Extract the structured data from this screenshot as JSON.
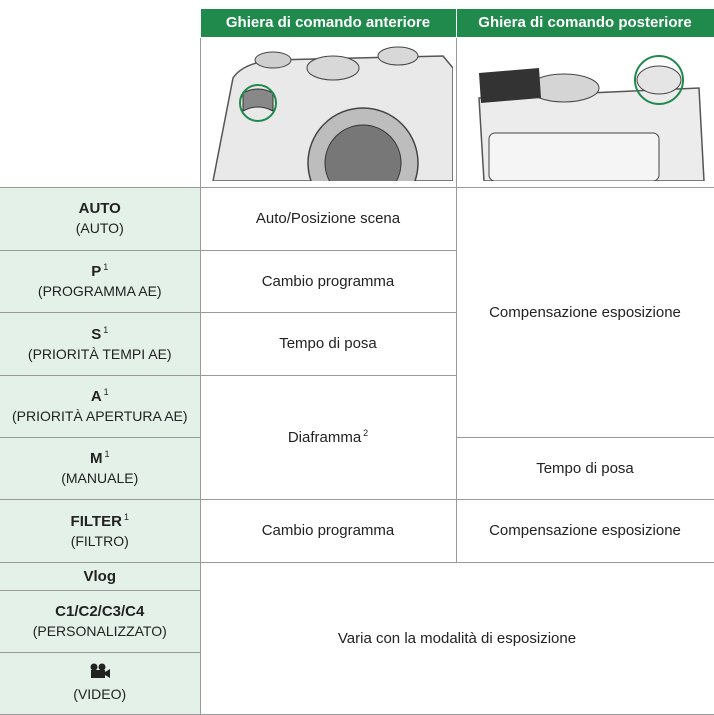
{
  "header": {
    "columns": [
      "Ghiera di comando anteriore",
      "Ghiera di comando posteriore"
    ]
  },
  "modes": [
    {
      "name": "AUTO",
      "sub": "(AUTO)"
    },
    {
      "name": "P",
      "note": "1",
      "sub": "(PROGRAMMA AE)"
    },
    {
      "name": "S",
      "note": "1",
      "sub": "(PRIORITÀ TEMPI AE)"
    },
    {
      "name": "A",
      "note": "1",
      "sub": "(PRIORITÀ APERTURA AE)"
    },
    {
      "name": "M",
      "note": "1",
      "sub": "(MANUALE)"
    },
    {
      "name": "FILTER",
      "note": "1",
      "sub": "(FILTRO)"
    },
    {
      "name": "Vlog"
    },
    {
      "name": "C1/C2/C3/C4",
      "sub": "(PERSONALIZZATO)"
    },
    {
      "sub": "(VIDEO)"
    }
  ],
  "front": [
    {
      "text": "Auto/Posizione scena"
    },
    {
      "text": "Cambio programma"
    },
    {
      "text": "Tempo di posa"
    },
    {
      "text": "Diaframma",
      "note": "2"
    },
    {
      "text": "Cambio programma"
    }
  ],
  "rear": [
    {
      "text": "Compensazione esposizione"
    },
    {
      "text": "Tempo di posa"
    },
    {
      "text": "Compensazione esposizione"
    }
  ],
  "shared": "Varia con la modalità di esposizione"
}
